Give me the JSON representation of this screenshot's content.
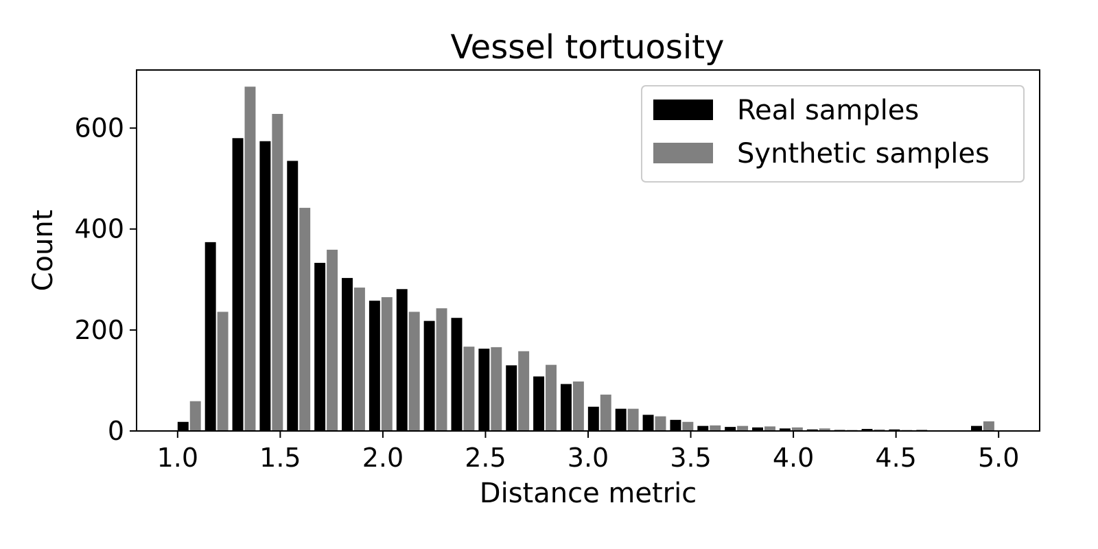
{
  "chart_data": {
    "type": "bar",
    "title": "Vessel tortuosity",
    "xlabel": "Distance metric",
    "ylabel": "Count",
    "xlim": [
      0.8,
      5.2
    ],
    "ylim": [
      0,
      715
    ],
    "xticks": [
      1.0,
      1.5,
      2.0,
      2.5,
      3.0,
      3.5,
      4.0,
      4.5,
      5.0
    ],
    "xtick_labels": [
      "1.0",
      "1.5",
      "2.0",
      "2.5",
      "3.0",
      "3.5",
      "4.0",
      "4.5",
      "5.0"
    ],
    "yticks": [
      0,
      200,
      400,
      600
    ],
    "ytick_labels": [
      "0",
      "200",
      "400",
      "600"
    ],
    "grid": false,
    "legend_position": "top-right",
    "bin_start": 1.0,
    "bin_width": 0.1333,
    "series": [
      {
        "name": "Real samples",
        "color": "#000000",
        "values": [
          18,
          374,
          580,
          574,
          535,
          333,
          303,
          258,
          281,
          218,
          224,
          163,
          130,
          108,
          93,
          48,
          44,
          32,
          22,
          10,
          8,
          7,
          5,
          3,
          2,
          4,
          3,
          2,
          1,
          10
        ]
      },
      {
        "name": "Synthetic samples",
        "color": "#808080",
        "values": [
          59,
          236,
          682,
          628,
          442,
          359,
          284,
          265,
          236,
          243,
          167,
          166,
          158,
          131,
          98,
          72,
          44,
          29,
          18,
          11,
          10,
          9,
          7,
          5,
          2,
          3,
          2,
          1,
          1,
          19
        ]
      }
    ]
  }
}
